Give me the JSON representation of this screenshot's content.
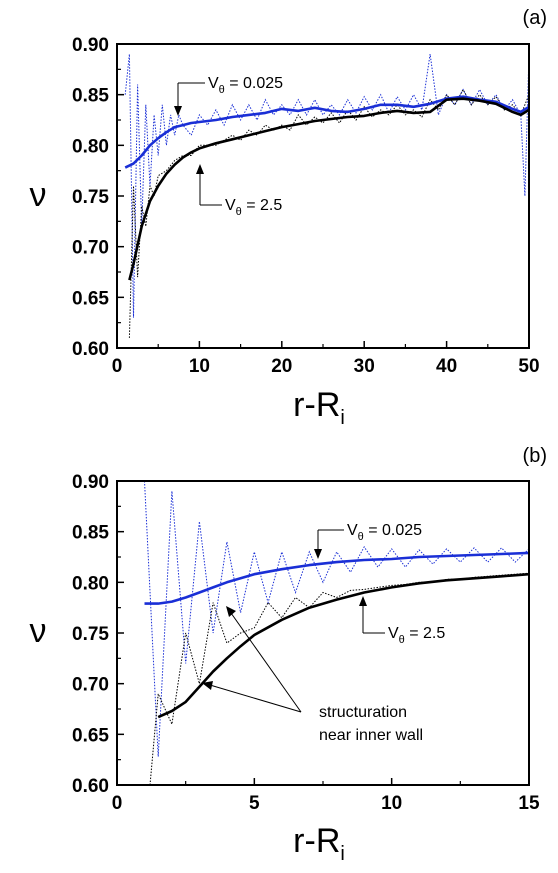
{
  "colors": {
    "blue": "#1a2fd6",
    "black": "#000000"
  },
  "chart_data": [
    {
      "type": "line",
      "panel_label": "(a)",
      "xlabel": "r-R",
      "xlabel_sub": "i",
      "ylabel": "ν",
      "xlim": [
        0,
        50
      ],
      "ylim": [
        0.6,
        0.9
      ],
      "xticks": [
        "0",
        "10",
        "20",
        "30",
        "40",
        "50"
      ],
      "yticks": [
        "0.60",
        "0.65",
        "0.70",
        "0.75",
        "0.80",
        "0.85",
        "0.90"
      ],
      "annotations": [
        {
          "id": "a1",
          "text": "V",
          "sub": "θ",
          "rest": " = 0.025"
        },
        {
          "id": "a2",
          "text": "V",
          "sub": "θ",
          "rest": " = 2.5"
        }
      ],
      "series": [
        {
          "style": "solid",
          "color": "#1a2fd6",
          "x": [
            1,
            2,
            3,
            4,
            5,
            6,
            7,
            8,
            9,
            10,
            12,
            14,
            16,
            18,
            20,
            22,
            24,
            26,
            28,
            30,
            32,
            34,
            36,
            38,
            40,
            42,
            44,
            46,
            48,
            49,
            50
          ],
          "y": [
            0.778,
            0.782,
            0.79,
            0.8,
            0.807,
            0.813,
            0.818,
            0.82,
            0.822,
            0.823,
            0.825,
            0.828,
            0.83,
            0.832,
            0.836,
            0.834,
            0.837,
            0.834,
            0.833,
            0.836,
            0.84,
            0.84,
            0.838,
            0.841,
            0.846,
            0.848,
            0.845,
            0.843,
            0.836,
            0.833,
            0.838
          ]
        },
        {
          "style": "solid",
          "color": "#000000",
          "x": [
            1.5,
            2,
            3,
            4,
            5,
            6,
            7,
            8,
            9,
            10,
            12,
            14,
            16,
            18,
            20,
            22,
            24,
            26,
            28,
            30,
            32,
            34,
            36,
            38,
            40,
            42,
            44,
            46,
            48,
            49,
            50
          ],
          "y": [
            0.667,
            0.683,
            0.72,
            0.745,
            0.76,
            0.772,
            0.781,
            0.788,
            0.793,
            0.797,
            0.802,
            0.806,
            0.81,
            0.814,
            0.818,
            0.821,
            0.824,
            0.826,
            0.828,
            0.829,
            0.832,
            0.834,
            0.832,
            0.833,
            0.845,
            0.846,
            0.844,
            0.841,
            0.833,
            0.83,
            0.835
          ]
        },
        {
          "style": "dotted",
          "color": "#1a2fd6",
          "x": [
            1,
            1.5,
            2,
            2.5,
            3,
            3.5,
            4,
            4.5,
            5,
            5.5,
            6,
            6.5,
            7,
            7.5,
            8,
            9,
            10,
            11,
            12,
            13,
            14,
            15,
            16,
            17,
            18,
            19,
            20,
            21,
            22,
            23,
            24,
            25,
            26,
            27,
            28,
            29,
            30,
            31,
            32,
            33,
            34,
            35,
            36,
            37,
            38,
            39,
            40,
            41,
            42,
            43,
            44,
            45,
            46,
            47,
            48,
            49,
            49.5,
            50
          ],
          "y": [
            0.85,
            0.89,
            0.63,
            0.86,
            0.72,
            0.84,
            0.76,
            0.83,
            0.79,
            0.84,
            0.8,
            0.83,
            0.81,
            0.83,
            0.82,
            0.81,
            0.83,
            0.82,
            0.835,
            0.82,
            0.84,
            0.825,
            0.84,
            0.825,
            0.845,
            0.83,
            0.84,
            0.83,
            0.845,
            0.83,
            0.845,
            0.83,
            0.84,
            0.83,
            0.845,
            0.832,
            0.848,
            0.835,
            0.85,
            0.832,
            0.848,
            0.835,
            0.85,
            0.835,
            0.89,
            0.83,
            0.85,
            0.84,
            0.855,
            0.84,
            0.855,
            0.84,
            0.85,
            0.835,
            0.845,
            0.83,
            0.75,
            0.89
          ]
        },
        {
          "style": "dotted",
          "color": "#000000",
          "x": [
            1.5,
            2,
            2.5,
            3,
            3.5,
            4,
            4.5,
            5,
            6,
            7,
            8,
            9,
            10,
            11,
            12,
            13,
            14,
            15,
            16,
            17,
            18,
            19,
            20,
            21,
            22,
            23,
            24,
            25,
            26,
            27,
            28,
            29,
            30,
            31,
            32,
            33,
            34,
            35,
            36,
            37,
            38,
            39,
            40,
            41,
            42,
            43,
            44,
            45,
            46,
            47,
            48,
            49,
            50
          ],
          "y": [
            0.61,
            0.76,
            0.67,
            0.74,
            0.72,
            0.76,
            0.75,
            0.77,
            0.775,
            0.785,
            0.79,
            0.79,
            0.8,
            0.8,
            0.8,
            0.805,
            0.81,
            0.805,
            0.815,
            0.81,
            0.82,
            0.815,
            0.82,
            0.815,
            0.83,
            0.82,
            0.828,
            0.822,
            0.832,
            0.822,
            0.835,
            0.825,
            0.838,
            0.828,
            0.835,
            0.83,
            0.84,
            0.83,
            0.835,
            0.828,
            0.845,
            0.835,
            0.85,
            0.84,
            0.855,
            0.84,
            0.85,
            0.84,
            0.848,
            0.835,
            0.84,
            0.83,
            0.85
          ]
        }
      ]
    },
    {
      "type": "line",
      "panel_label": "(b)",
      "xlabel": "r-R",
      "xlabel_sub": "i",
      "ylabel": "ν",
      "xlim": [
        0,
        15
      ],
      "ylim": [
        0.6,
        0.9
      ],
      "xticks": [
        "0",
        "5",
        "10",
        "15"
      ],
      "yticks": [
        "0.60",
        "0.65",
        "0.70",
        "0.75",
        "0.80",
        "0.85",
        "0.90"
      ],
      "annotations": [
        {
          "id": "b1",
          "text": "V",
          "sub": "θ",
          "rest": " = 0.025"
        },
        {
          "id": "b2",
          "text": "V",
          "sub": "θ",
          "rest": " = 2.5"
        },
        {
          "id": "b3",
          "text": "structuration"
        },
        {
          "id": "b4",
          "text": "near inner wall"
        }
      ],
      "series": [
        {
          "style": "solid",
          "color": "#1a2fd6",
          "x": [
            1,
            1.5,
            2,
            2.5,
            3,
            3.5,
            4,
            5,
            6,
            7,
            8,
            9,
            10,
            11,
            12,
            13,
            14,
            15
          ],
          "y": [
            0.779,
            0.779,
            0.781,
            0.785,
            0.79,
            0.795,
            0.8,
            0.808,
            0.813,
            0.817,
            0.82,
            0.822,
            0.823,
            0.825,
            0.826,
            0.827,
            0.828,
            0.829
          ]
        },
        {
          "style": "solid",
          "color": "#000000",
          "x": [
            1.5,
            2,
            2.5,
            3,
            3.5,
            4,
            4.5,
            5,
            6,
            7,
            8,
            9,
            10,
            11,
            12,
            13,
            14,
            15
          ],
          "y": [
            0.667,
            0.673,
            0.682,
            0.697,
            0.712,
            0.725,
            0.737,
            0.748,
            0.763,
            0.775,
            0.783,
            0.79,
            0.795,
            0.799,
            0.802,
            0.804,
            0.806,
            0.808
          ]
        },
        {
          "style": "dotted",
          "color": "#1a2fd6",
          "x": [
            1,
            1.5,
            2,
            2.5,
            3,
            3.5,
            4,
            4.5,
            5,
            5.5,
            6,
            6.5,
            7,
            7.5,
            8,
            8.5,
            9,
            9.5,
            10,
            10.5,
            11,
            11.5,
            12,
            12.5,
            13,
            13.5,
            14,
            14.5,
            15
          ],
          "y": [
            0.9,
            0.628,
            0.89,
            0.72,
            0.86,
            0.75,
            0.84,
            0.77,
            0.83,
            0.78,
            0.83,
            0.79,
            0.83,
            0.8,
            0.83,
            0.81,
            0.835,
            0.815,
            0.833,
            0.815,
            0.832,
            0.818,
            0.833,
            0.82,
            0.834,
            0.82,
            0.834,
            0.82,
            0.833
          ]
        },
        {
          "style": "dotted",
          "color": "#000000",
          "x": [
            1.2,
            1.5,
            2,
            2.5,
            3,
            3.5,
            4,
            4.5,
            5,
            5.5,
            6,
            6.5,
            7,
            7.5,
            8,
            8.5,
            9,
            9.5,
            10,
            10.5,
            11,
            11.5,
            12,
            12.5,
            13,
            13.5,
            14,
            14.5,
            15
          ],
          "y": [
            0.6,
            0.69,
            0.66,
            0.75,
            0.7,
            0.78,
            0.74,
            0.75,
            0.755,
            0.78,
            0.765,
            0.785,
            0.775,
            0.79,
            0.785,
            0.792,
            0.793,
            0.795,
            0.797,
            0.798,
            0.8,
            0.8,
            0.803,
            0.803,
            0.805,
            0.806,
            0.807,
            0.808,
            0.809
          ]
        }
      ]
    }
  ]
}
